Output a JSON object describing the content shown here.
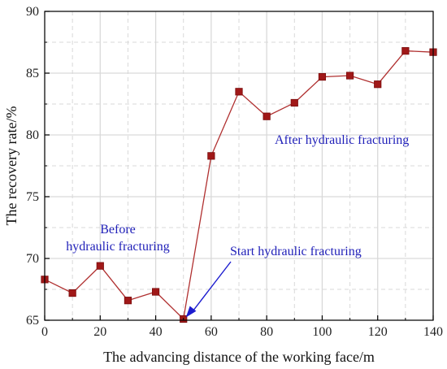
{
  "chart_data": {
    "type": "line",
    "title": "",
    "xlabel": "The advancing distance of the working face/m",
    "ylabel": "The recovery rate/%",
    "xlim": [
      0,
      140
    ],
    "ylim": [
      65,
      90
    ],
    "x_ticks": [
      0,
      20,
      40,
      60,
      80,
      100,
      120,
      140
    ],
    "y_ticks": [
      65,
      70,
      75,
      80,
      85,
      90
    ],
    "grid": true,
    "colors": {
      "line": "#b03030",
      "marker": "#a01818",
      "marker_edge": "#7a0c0c",
      "arrow": "#1c1ccf",
      "annotation": "#1f1fb8",
      "grid": "#d9d9d9",
      "frame": "#000000"
    },
    "series": [
      {
        "x": [
          0,
          10,
          20,
          30,
          40,
          50,
          60,
          70,
          80,
          90,
          100,
          110,
          120,
          130,
          140
        ],
        "y": [
          68.3,
          67.2,
          69.4,
          66.6,
          67.3,
          65.1,
          78.3,
          83.5,
          81.5,
          82.6,
          84.7,
          84.8,
          84.1,
          86.8,
          86.7
        ]
      }
    ],
    "annotations": [
      {
        "lines": [
          "Before",
          "hydraulic fracturing"
        ]
      },
      {
        "lines": [
          "Start hydraulic fracturing"
        ],
        "arrow_to": [
          50,
          65.1
        ]
      },
      {
        "lines": [
          "After hydraulic fracturing"
        ]
      }
    ]
  }
}
